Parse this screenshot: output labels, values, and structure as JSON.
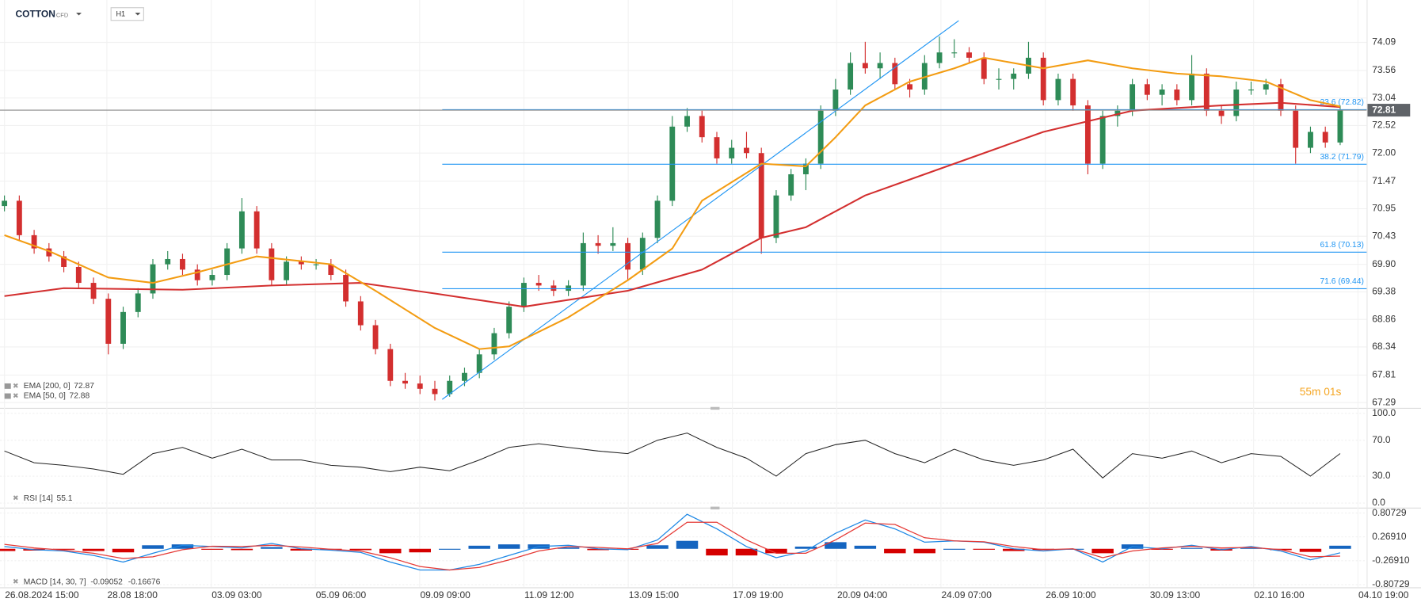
{
  "header": {
    "symbol": "COTTON",
    "tag": "CFD",
    "interval": "H1"
  },
  "chart_data": [
    {
      "type": "candlestick",
      "xlim": [
        -0.3,
        91.6
      ],
      "ylim": [
        67.19,
        74.89
      ],
      "xticks": [
        {
          "value": 0,
          "label": "26.08.2024  15:00"
        },
        {
          "value": 6.9,
          "label": "28.08  18:00"
        },
        {
          "value": 13.93,
          "label": "03.09  03:00"
        },
        {
          "value": 20.95,
          "label": "05.09  06:00"
        },
        {
          "value": 27.98,
          "label": "09.09  09:00"
        },
        {
          "value": 35.0,
          "label": "11.09  12:00"
        },
        {
          "value": 42.03,
          "label": "13.09  15:00"
        },
        {
          "value": 49.05,
          "label": "17.09  19:00"
        },
        {
          "value": 56.08,
          "label": "20.09  04:00"
        },
        {
          "value": 63.1,
          "label": "24.09  07:00"
        },
        {
          "value": 70.13,
          "label": "26.09  10:00"
        },
        {
          "value": 77.15,
          "label": "30.09  13:00"
        },
        {
          "value": 84.17,
          "label": "02.10  16:00"
        },
        {
          "value": 91.2,
          "label": "04.10  19:00"
        }
      ],
      "yticks": [
        74.09,
        73.56,
        73.04,
        72.52,
        {
          "value": 72,
          "label": "72.00"
        },
        71.47,
        70.95,
        70.43,
        {
          "value": 69.9,
          "label": "69.90"
        },
        69.38,
        68.86,
        68.34,
        67.81,
        67.29
      ],
      "up_color": "#2e8b57",
      "down_color": "#d32f2f",
      "candles": [
        [
          71.0,
          71.2,
          70.9,
          71.1
        ],
        [
          71.1,
          71.2,
          70.35,
          70.45
        ],
        [
          70.45,
          70.55,
          70.1,
          70.2
        ],
        [
          70.2,
          70.3,
          69.95,
          70.05
        ],
        [
          70.05,
          70.15,
          69.75,
          69.85
        ],
        [
          69.85,
          69.95,
          69.45,
          69.55
        ],
        [
          69.55,
          69.65,
          69.15,
          69.25
        ],
        [
          69.25,
          69.35,
          68.2,
          68.4
        ],
        [
          68.4,
          69.1,
          68.3,
          69.0
        ],
        [
          69.0,
          69.45,
          68.9,
          69.35
        ],
        [
          69.35,
          70.0,
          69.25,
          69.9
        ],
        [
          69.9,
          70.15,
          69.8,
          70.0
        ],
        [
          70.0,
          70.1,
          69.7,
          69.8
        ],
        [
          69.8,
          69.9,
          69.5,
          69.6
        ],
        [
          69.6,
          69.8,
          69.5,
          69.7
        ],
        [
          69.7,
          70.3,
          69.6,
          70.2
        ],
        [
          70.2,
          71.15,
          70.1,
          70.9
        ],
        [
          70.9,
          71.0,
          70.1,
          70.2
        ],
        [
          70.2,
          70.3,
          69.5,
          69.6
        ],
        [
          69.6,
          70.05,
          69.5,
          69.95
        ],
        [
          69.95,
          70.05,
          69.8,
          69.9
        ],
        [
          69.9,
          70.0,
          69.8,
          69.9
        ],
        [
          69.9,
          70.0,
          69.6,
          69.7
        ],
        [
          69.7,
          69.8,
          69.1,
          69.2
        ],
        [
          69.2,
          69.3,
          68.65,
          68.75
        ],
        [
          68.75,
          68.85,
          68.2,
          68.3
        ],
        [
          68.3,
          68.4,
          67.6,
          67.7
        ],
        [
          67.7,
          67.85,
          67.55,
          67.65
        ],
        [
          67.65,
          67.8,
          67.45,
          67.55
        ],
        [
          67.55,
          67.7,
          67.33,
          67.45
        ],
        [
          67.45,
          67.8,
          67.4,
          67.7
        ],
        [
          67.7,
          67.95,
          67.6,
          67.85
        ],
        [
          67.85,
          68.3,
          67.75,
          68.2
        ],
        [
          68.2,
          68.7,
          68.1,
          68.6
        ],
        [
          68.6,
          69.2,
          68.5,
          69.1
        ],
        [
          69.1,
          69.65,
          69.0,
          69.55
        ],
        [
          69.55,
          69.7,
          69.4,
          69.5
        ],
        [
          69.5,
          69.6,
          69.3,
          69.4
        ],
        [
          69.4,
          69.6,
          69.3,
          69.5
        ],
        [
          69.5,
          70.5,
          69.4,
          70.3
        ],
        [
          70.3,
          70.45,
          70.1,
          70.25
        ],
        [
          70.25,
          70.6,
          70.15,
          70.3
        ],
        [
          70.3,
          70.4,
          69.6,
          69.8
        ],
        [
          69.8,
          70.5,
          69.7,
          70.4
        ],
        [
          70.4,
          71.2,
          70.3,
          71.1
        ],
        [
          71.1,
          72.7,
          71.0,
          72.5
        ],
        [
          72.5,
          72.85,
          72.4,
          72.7
        ],
        [
          72.7,
          72.8,
          72.2,
          72.3
        ],
        [
          72.3,
          72.4,
          71.8,
          71.9
        ],
        [
          71.9,
          72.25,
          71.8,
          72.1
        ],
        [
          72.1,
          72.4,
          71.9,
          72.0
        ],
        [
          72.0,
          72.1,
          70.1,
          70.4
        ],
        [
          70.4,
          71.3,
          70.3,
          71.2
        ],
        [
          71.2,
          71.7,
          71.1,
          71.6
        ],
        [
          71.6,
          71.9,
          71.3,
          71.8
        ],
        [
          71.8,
          72.9,
          71.7,
          72.8
        ],
        [
          72.8,
          73.4,
          72.7,
          73.2
        ],
        [
          73.2,
          73.9,
          73.1,
          73.7
        ],
        [
          73.7,
          74.1,
          73.5,
          73.6
        ],
        [
          73.6,
          73.9,
          73.4,
          73.7
        ],
        [
          73.7,
          73.8,
          73.2,
          73.3
        ],
        [
          73.3,
          73.4,
          73.05,
          73.2
        ],
        [
          73.2,
          73.85,
          73.1,
          73.7
        ],
        [
          73.7,
          74.2,
          73.6,
          73.9
        ],
        [
          73.9,
          74.15,
          73.8,
          73.9
        ],
        [
          73.9,
          74.0,
          73.7,
          73.8
        ],
        [
          73.8,
          73.9,
          73.3,
          73.4
        ],
        [
          73.4,
          73.6,
          73.2,
          73.4
        ],
        [
          73.4,
          73.6,
          73.2,
          73.5
        ],
        [
          73.5,
          74.1,
          73.4,
          73.8
        ],
        [
          73.8,
          73.9,
          72.9,
          73.0
        ],
        [
          73.0,
          73.5,
          72.9,
          73.4
        ],
        [
          73.4,
          73.5,
          72.8,
          72.9
        ],
        [
          72.9,
          73.0,
          71.6,
          71.8
        ],
        [
          71.8,
          72.8,
          71.7,
          72.7
        ],
        [
          72.7,
          72.9,
          72.5,
          72.8
        ],
        [
          72.8,
          73.4,
          72.7,
          73.3
        ],
        [
          73.3,
          73.4,
          73.0,
          73.1
        ],
        [
          73.1,
          73.3,
          72.9,
          73.2
        ],
        [
          73.2,
          73.3,
          72.9,
          73.0
        ],
        [
          73.0,
          73.85,
          72.9,
          73.5
        ],
        [
          73.5,
          73.6,
          72.7,
          72.8
        ],
        [
          72.8,
          72.9,
          72.55,
          72.7
        ],
        [
          72.7,
          73.35,
          72.6,
          73.2
        ],
        [
          73.2,
          73.35,
          73.1,
          73.2
        ],
        [
          73.2,
          73.4,
          73.1,
          73.3
        ],
        [
          73.3,
          73.4,
          72.7,
          72.8
        ],
        [
          72.8,
          72.9,
          71.8,
          72.1
        ],
        [
          72.1,
          72.5,
          72.0,
          72.4
        ],
        [
          72.4,
          72.5,
          72.1,
          72.2
        ],
        [
          72.2,
          72.9,
          72.15,
          72.81
        ]
      ],
      "series": [
        {
          "name": "EMA [200,  0]",
          "color": "#d32f2f",
          "x": [
            0,
            4,
            12,
            18,
            24,
            29,
            35,
            42,
            47,
            51,
            54,
            58,
            64,
            70,
            76,
            82,
            86,
            90
          ],
          "values": [
            69.3,
            69.45,
            69.42,
            69.5,
            69.55,
            69.35,
            69.1,
            69.4,
            69.8,
            70.4,
            70.6,
            71.2,
            71.8,
            72.4,
            72.8,
            72.9,
            72.95,
            72.87
          ]
        },
        {
          "name": "EMA [50,  0]",
          "color": "#f39c12",
          "x": [
            0,
            3,
            7,
            10,
            13,
            17,
            22,
            25,
            29,
            32,
            34,
            38,
            42,
            45,
            47,
            51,
            54,
            56,
            58,
            61,
            64,
            66,
            70,
            73,
            76,
            79,
            82,
            85,
            88,
            90
          ],
          "values": [
            70.45,
            70.15,
            69.65,
            69.55,
            69.75,
            70.05,
            69.9,
            69.4,
            68.7,
            68.3,
            68.35,
            68.9,
            69.6,
            70.2,
            71.1,
            71.8,
            71.75,
            72.3,
            72.9,
            73.35,
            73.6,
            73.8,
            73.6,
            73.75,
            73.6,
            73.5,
            73.45,
            73.35,
            73.0,
            72.88
          ]
        }
      ],
      "fib_from": 29.5,
      "fib_color": "#2196f3",
      "fib_levels": [
        {
          "label": "23.6 (72.82)",
          "value": 72.82
        },
        {
          "label": "38.2 (71.79)",
          "value": 71.79
        },
        {
          "label": "61.8 (70.13)",
          "value": 70.13
        },
        {
          "label": "71.6 (69.44)",
          "value": 69.44
        }
      ],
      "trendline": {
        "x": [
          29.5,
          64.3
        ],
        "values": [
          67.35,
          74.5
        ]
      },
      "last_price": 72.81,
      "timer": "55m 01s"
    },
    {
      "type": "line",
      "ylim": [
        -5,
        105
      ],
      "yticks": [
        {
          "value": 100,
          "label": "100.0"
        },
        {
          "value": 70,
          "label": "70.0"
        },
        {
          "value": 30,
          "label": "30.0"
        },
        {
          "value": 0,
          "label": "0.0"
        }
      ],
      "series": [
        {
          "name": "RSI [14]",
          "color": "#222222",
          "x": [
            0,
            2,
            4,
            6,
            8,
            10,
            12,
            14,
            16,
            18,
            20,
            22,
            24,
            26,
            28,
            30,
            32,
            34,
            36,
            38,
            40,
            42,
            44,
            46,
            48,
            50,
            52,
            54,
            56,
            58,
            60,
            62,
            64,
            66,
            68,
            70,
            72,
            74,
            76,
            78,
            80,
            82,
            84,
            86,
            88,
            90
          ],
          "values": [
            58,
            45,
            42,
            38,
            32,
            55,
            62,
            50,
            60,
            48,
            48,
            42,
            40,
            35,
            40,
            36,
            48,
            62,
            66,
            62,
            58,
            55,
            70,
            78,
            62,
            50,
            30,
            55,
            65,
            70,
            55,
            45,
            60,
            48,
            42,
            48,
            60,
            28,
            55,
            50,
            58,
            45,
            55,
            52,
            30,
            55.1
          ]
        }
      ]
    },
    {
      "type": "macd",
      "ylim": [
        -0.87,
        0.89
      ],
      "yticks": [
        0.80729,
        {
          "value": 0.2691,
          "label": "0.26910"
        },
        {
          "value": -0.2691,
          "label": "-0.26910"
        },
        -0.80729
      ],
      "x": [
        0,
        2,
        4,
        6,
        8,
        10,
        12,
        14,
        16,
        18,
        20,
        22,
        24,
        26,
        28,
        30,
        32,
        34,
        36,
        38,
        40,
        42,
        44,
        46,
        48,
        50,
        52,
        54,
        56,
        58,
        60,
        62,
        64,
        66,
        68,
        70,
        72,
        74,
        76,
        78,
        80,
        82,
        84,
        86,
        88,
        90
      ],
      "name": "MACD [14, 30, 7]",
      "series": [
        {
          "color": "#1e88e5",
          "values": [
            0.05,
            -0.02,
            -0.05,
            -0.15,
            -0.3,
            -0.1,
            0.08,
            0.05,
            0.02,
            0.12,
            0.0,
            -0.03,
            -0.08,
            -0.3,
            -0.48,
            -0.48,
            -0.35,
            -0.15,
            0.05,
            0.08,
            0.0,
            -0.02,
            0.2,
            0.78,
            0.45,
            0.05,
            -0.2,
            -0.05,
            0.35,
            0.65,
            0.45,
            0.15,
            0.18,
            0.15,
            0.0,
            -0.05,
            0.0,
            -0.3,
            0.05,
            0.0,
            0.08,
            -0.02,
            0.05,
            -0.05,
            -0.25,
            -0.09052
          ]
        },
        {
          "color": "#e53935",
          "values": [
            0.1,
            0.02,
            -0.03,
            -0.1,
            -0.22,
            -0.18,
            -0.02,
            0.06,
            0.05,
            0.08,
            0.04,
            -0.01,
            -0.05,
            -0.2,
            -0.4,
            -0.48,
            -0.42,
            -0.25,
            -0.05,
            0.05,
            0.03,
            0.0,
            0.12,
            0.6,
            0.6,
            0.2,
            -0.1,
            -0.1,
            0.2,
            0.58,
            0.55,
            0.25,
            0.18,
            0.16,
            0.05,
            -0.02,
            0.0,
            -0.2,
            -0.05,
            0.02,
            0.06,
            0.02,
            0.03,
            -0.02,
            -0.18,
            -0.16676
          ]
        }
      ],
      "histogram": {
        "up_color": "#1565c0",
        "down_color": "#d50000",
        "values": [
          -0.05,
          -0.04,
          -0.02,
          -0.05,
          -0.08,
          0.08,
          0.1,
          -0.01,
          -0.03,
          0.04,
          -0.04,
          -0.02,
          -0.03,
          -0.1,
          -0.08,
          0.0,
          0.07,
          0.1,
          0.1,
          0.03,
          -0.03,
          -0.02,
          0.08,
          0.18,
          -0.15,
          -0.15,
          -0.1,
          0.05,
          0.15,
          0.07,
          -0.1,
          -0.1,
          0.0,
          -0.01,
          -0.05,
          -0.03,
          0.0,
          -0.1,
          0.1,
          -0.02,
          0.02,
          -0.04,
          0.02,
          -0.03,
          -0.07,
          0.07
        ]
      }
    }
  ]
}
